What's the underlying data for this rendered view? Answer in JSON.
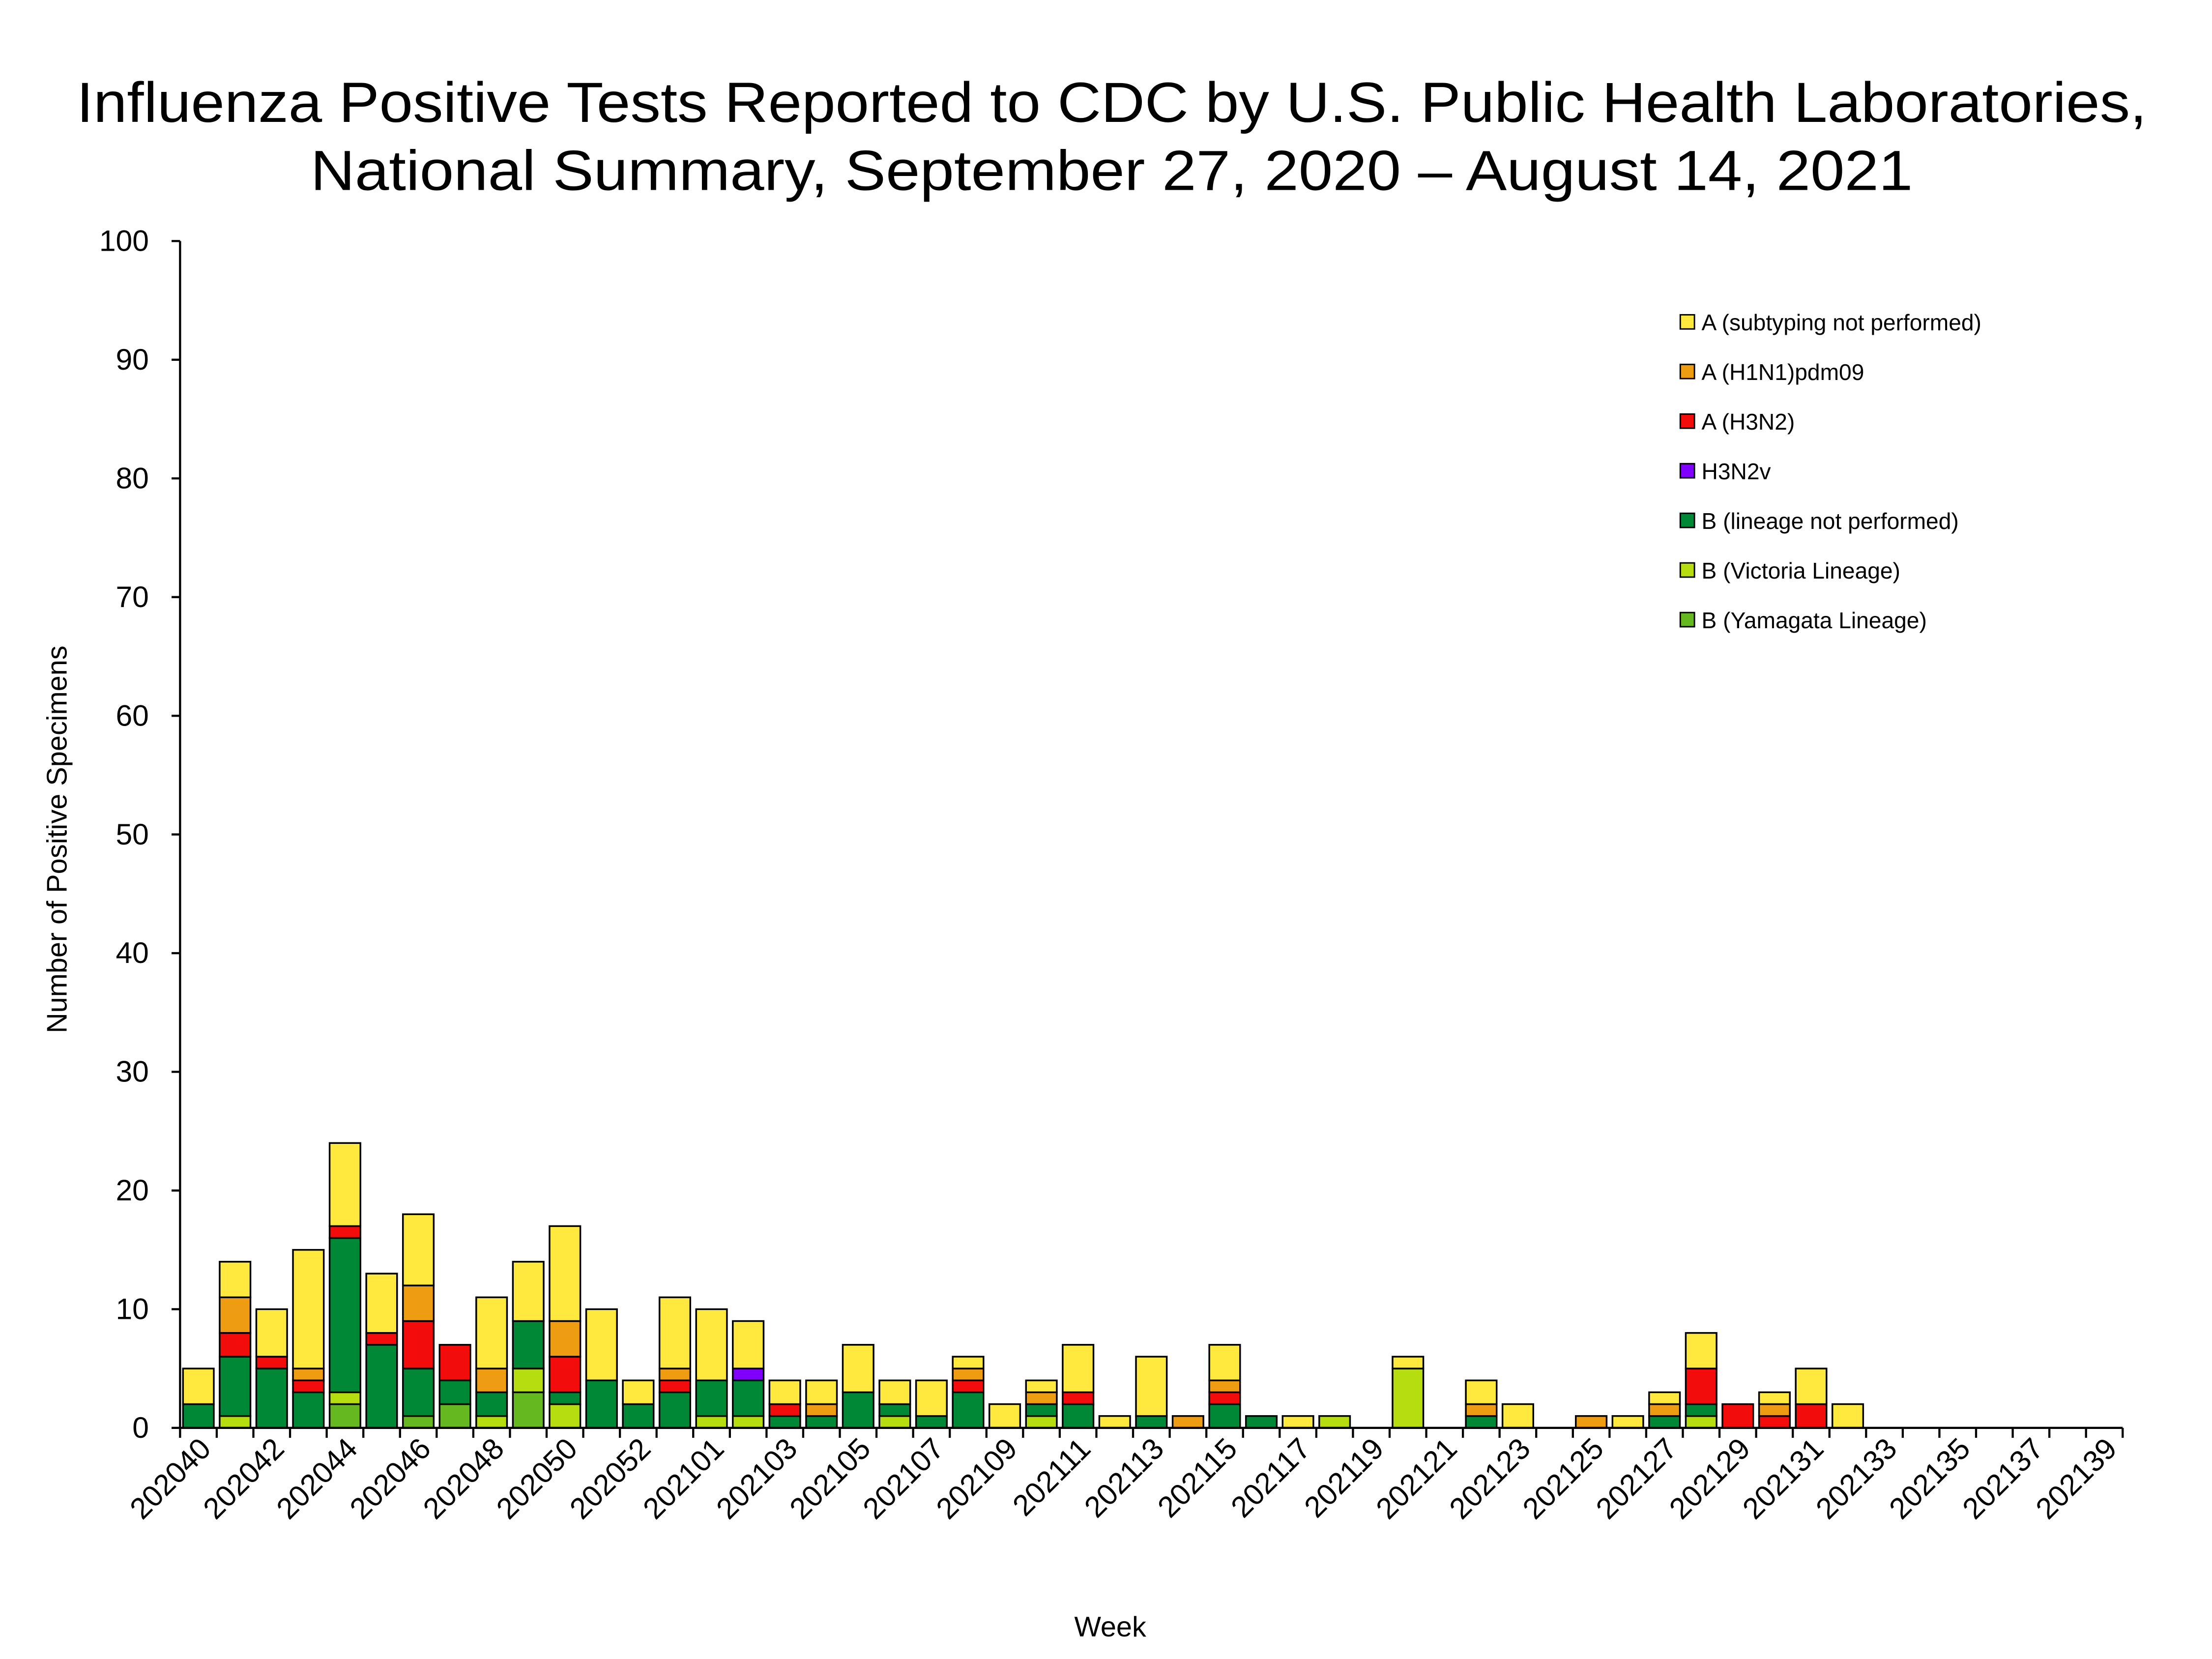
{
  "chart_data": {
    "type": "bar",
    "stacked": true,
    "title_lines": [
      "Influenza Positive Tests Reported to CDC by U.S. Public Health Laboratories,",
      "National Summary, September 27, 2020 – August 14, 2021"
    ],
    "xlabel": "Week",
    "ylabel": "Number of Positive Specimens",
    "ylim": [
      0,
      100
    ],
    "y_ticks": [
      "0",
      "10",
      "20",
      "30",
      "40",
      "50",
      "60",
      "70",
      "80",
      "90",
      "100"
    ],
    "grid": false,
    "legend_placement": "top-right",
    "categories": [
      "202040",
      "202041",
      "202042",
      "202043",
      "202044",
      "202045",
      "202046",
      "202047",
      "202048",
      "202049",
      "202050",
      "202051",
      "202052",
      "202053",
      "202101",
      "202102",
      "202103",
      "202104",
      "202105",
      "202106",
      "202107",
      "202108",
      "202109",
      "202110",
      "202111",
      "202112",
      "202113",
      "202114",
      "202115",
      "202116",
      "202117",
      "202118",
      "202119",
      "202120",
      "202121",
      "202122",
      "202123",
      "202124",
      "202125",
      "202126",
      "202127",
      "202128",
      "202129",
      "202130",
      "202131",
      "202132",
      "202133",
      "202134",
      "202135",
      "202136",
      "202137",
      "202138",
      "202139"
    ],
    "x_tick_labels": [
      "202040",
      "202042",
      "202044",
      "202046",
      "202048",
      "202050",
      "202052",
      "202101",
      "202103",
      "202105",
      "202107",
      "202109",
      "202111",
      "202113",
      "202115",
      "202117",
      "202119",
      "202121",
      "202123",
      "202125",
      "202127",
      "202129",
      "202131",
      "202133",
      "202135",
      "202137",
      "202139"
    ],
    "series": [
      {
        "name": "B (Yamagata Lineage)",
        "color": "#66B821",
        "values": [
          0,
          0,
          0,
          0,
          2,
          0,
          1,
          2,
          0,
          3,
          0,
          0,
          0,
          0,
          0,
          0,
          0,
          0,
          0,
          0,
          0,
          0,
          0,
          0,
          0,
          0,
          0,
          0,
          0,
          0,
          0,
          0,
          0,
          0,
          0,
          0,
          0,
          0,
          0,
          0,
          0,
          0,
          0,
          0,
          0,
          0,
          0,
          0,
          0,
          0,
          0,
          0,
          0
        ]
      },
      {
        "name": "B (Victoria Lineage)",
        "color": "#B5DD0F",
        "values": [
          0,
          1,
          0,
          0,
          1,
          0,
          0,
          0,
          1,
          2,
          2,
          0,
          0,
          0,
          1,
          1,
          0,
          0,
          0,
          1,
          0,
          0,
          0,
          1,
          0,
          0,
          0,
          0,
          0,
          0,
          0,
          1,
          0,
          5,
          0,
          0,
          0,
          0,
          0,
          0,
          0,
          1,
          0,
          0,
          0,
          0,
          0,
          0,
          0,
          0,
          0,
          0,
          0
        ]
      },
      {
        "name": "B (lineage not performed)",
        "color": "#008837",
        "values": [
          2,
          5,
          5,
          3,
          13,
          7,
          4,
          2,
          2,
          4,
          1,
          4,
          2,
          3,
          3,
          3,
          1,
          1,
          3,
          1,
          1,
          3,
          0,
          1,
          2,
          0,
          1,
          0,
          2,
          1,
          0,
          0,
          0,
          0,
          0,
          1,
          0,
          0,
          0,
          0,
          1,
          1,
          0,
          0,
          0,
          0,
          0,
          0,
          0,
          0,
          0,
          0,
          0
        ]
      },
      {
        "name": "H3N2v",
        "color": "#7F00FF",
        "values": [
          0,
          0,
          0,
          0,
          0,
          0,
          0,
          0,
          0,
          0,
          0,
          0,
          0,
          0,
          0,
          1,
          0,
          0,
          0,
          0,
          0,
          0,
          0,
          0,
          0,
          0,
          0,
          0,
          0,
          0,
          0,
          0,
          0,
          0,
          0,
          0,
          0,
          0,
          0,
          0,
          0,
          0,
          0,
          0,
          0,
          0,
          0,
          0,
          0,
          0,
          0,
          0,
          0
        ]
      },
      {
        "name": "A (H3N2)",
        "color": "#F20C0C",
        "values": [
          0,
          2,
          1,
          1,
          1,
          1,
          4,
          3,
          0,
          0,
          3,
          0,
          0,
          1,
          0,
          0,
          1,
          0,
          0,
          0,
          0,
          1,
          0,
          0,
          1,
          0,
          0,
          0,
          1,
          0,
          0,
          0,
          0,
          0,
          0,
          0,
          0,
          0,
          0,
          0,
          0,
          3,
          2,
          1,
          2,
          0,
          0,
          0,
          0,
          0,
          0,
          0,
          0
        ]
      },
      {
        "name": "A (H1N1)pdm09",
        "color": "#EE9C11",
        "values": [
          0,
          3,
          0,
          1,
          0,
          0,
          3,
          0,
          2,
          0,
          3,
          0,
          0,
          1,
          0,
          0,
          0,
          1,
          0,
          0,
          0,
          1,
          0,
          1,
          0,
          0,
          0,
          1,
          1,
          0,
          0,
          0,
          0,
          0,
          0,
          1,
          0,
          0,
          1,
          0,
          1,
          0,
          0,
          1,
          0,
          0,
          0,
          0,
          0,
          0,
          0,
          0,
          0
        ]
      },
      {
        "name": "A (subtyping not performed)",
        "color": "#FFE93F",
        "values": [
          3,
          3,
          4,
          10,
          7,
          5,
          6,
          0,
          6,
          5,
          8,
          6,
          2,
          6,
          6,
          4,
          2,
          2,
          4,
          2,
          3,
          1,
          2,
          1,
          4,
          1,
          5,
          0,
          3,
          0,
          1,
          0,
          0,
          1,
          0,
          2,
          2,
          0,
          0,
          1,
          1,
          3,
          0,
          1,
          3,
          2,
          0,
          0,
          0,
          0,
          0,
          0,
          0
        ]
      }
    ],
    "legend_order": [
      "A (subtyping not performed)",
      "A (H1N1)pdm09",
      "A (H3N2)",
      "H3N2v",
      "B (lineage not performed)",
      "B (Victoria Lineage)",
      "B (Yamagata Lineage)"
    ]
  }
}
